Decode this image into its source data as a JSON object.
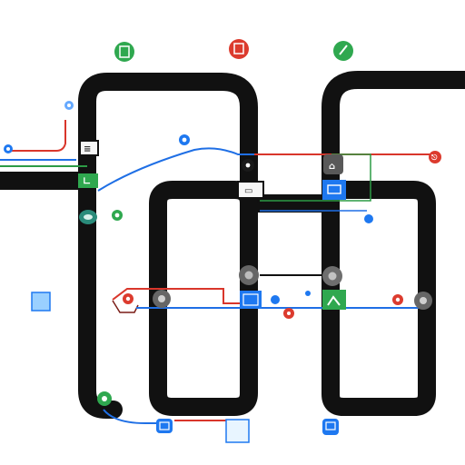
{
  "labels": [
    {
      "id": "label-top-middle",
      "text": ""
    },
    {
      "id": "label-top-right",
      "text": ""
    },
    {
      "id": "label-center",
      "text": ""
    },
    {
      "id": "label-bottom-right",
      "text": ""
    }
  ],
  "colors": {
    "track": "#111111",
    "route_blue": "#1f6fe5",
    "route_red": "#d9362b",
    "route_green": "#2c9b45",
    "route_dark_red": "#7a1c16",
    "node_green": "#2fa84f",
    "node_red": "#dc3b2e",
    "node_gray": "#6f6f6f",
    "node_blue": "#1e78f0",
    "node_light_blue": "#9ad0ff",
    "node_teal": "#2a8b7a"
  },
  "icons": {
    "top_green_node": "network-node-icon",
    "top_red_node": "network-node-icon",
    "top_green_right_node": "network-node-icon",
    "switch_nodes": "switch-icon",
    "gray_nodes": "gray-node-icon",
    "blue_nodes": "blue-node-icon",
    "red_nodes": "red-node-icon"
  }
}
